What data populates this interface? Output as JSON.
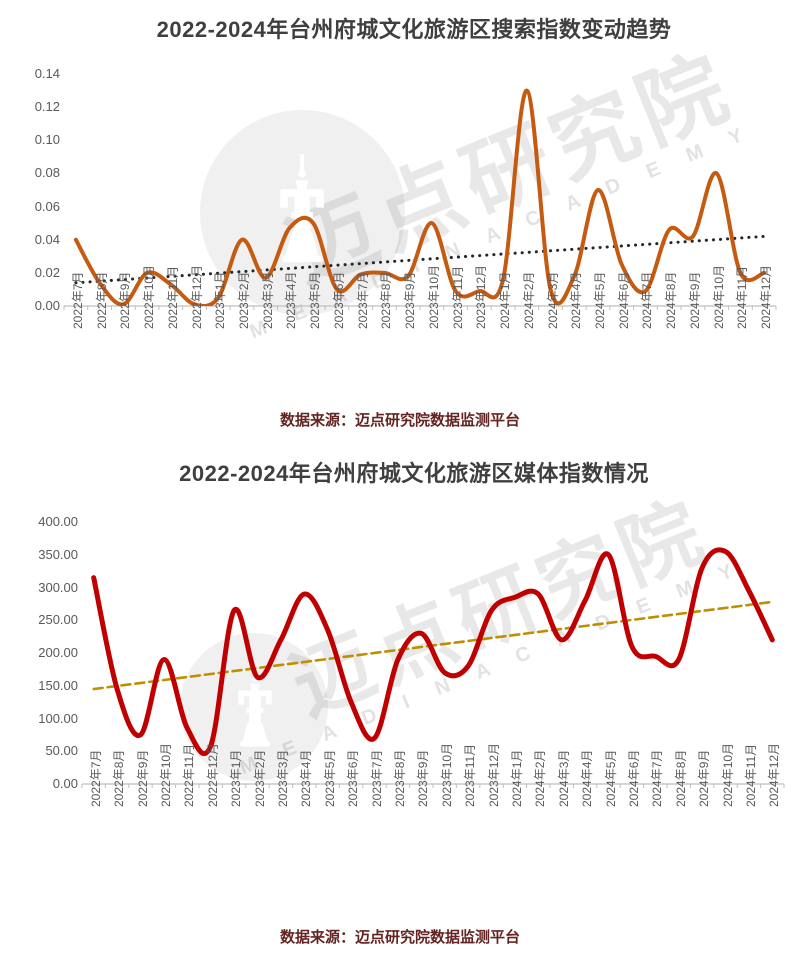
{
  "watermark": {
    "cn": "迈点研究院",
    "en": "M E A D I N   A C A D E M Y"
  },
  "chart_data": [
    {
      "type": "line",
      "title": "2022-2024年台州府城文化旅游区搜索指数变动趋势",
      "caption": "数据来源：迈点研究院数据监测平台",
      "categories": [
        "2022年7月",
        "2022年8月",
        "2022年9月",
        "2022年10月",
        "2022年11月",
        "2022年12月",
        "2023年1月",
        "2023年2月",
        "2023年3月",
        "2023年4月",
        "2023年5月",
        "2023年6月",
        "2023年7月",
        "2023年8月",
        "2023年9月",
        "2023年10月",
        "2023年11月",
        "2023年12月",
        "2024年1月",
        "2024年2月",
        "2024年3月",
        "2024年4月",
        "2024年5月",
        "2024年6月",
        "2024年7月",
        "2024年8月",
        "2024年9月",
        "2024年10月",
        "2024年11月",
        "2024年12月"
      ],
      "series": [
        {
          "values": [
            0.04,
            0.014,
            0.001,
            0.02,
            0.013,
            0.001,
            0.005,
            0.04,
            0.017,
            0.047,
            0.05,
            0.01,
            0.019,
            0.02,
            0.018,
            0.05,
            0.009,
            0.009,
            0.016,
            0.13,
            0.01,
            0.018,
            0.07,
            0.025,
            0.009,
            0.046,
            0.042,
            0.08,
            0.02,
            0.02
          ]
        }
      ],
      "trend": {
        "start": 0.014,
        "end": 0.042
      },
      "ylim": [
        0,
        0.14
      ],
      "ytick_labels": [
        "0.00",
        "0.02",
        "0.04",
        "0.06",
        "0.08",
        "0.10",
        "0.12",
        "0.14"
      ],
      "line_color": "#C55A11",
      "trend_color": "#262626",
      "trend_style": "dotted",
      "grid": false,
      "legend": false,
      "x_label_rotation": 90
    },
    {
      "type": "line",
      "title": "2022-2024年台州府城文化旅游区媒体指数情况",
      "caption": "数据来源：迈点研究院数据监测平台",
      "categories": [
        "2022年7月",
        "2022年8月",
        "2022年9月",
        "2022年10月",
        "2022年11月",
        "2022年12月",
        "2023年1月",
        "2023年2月",
        "2023年3月",
        "2023年4月",
        "2023年5月",
        "2023年6月",
        "2023年7月",
        "2023年8月",
        "2023年9月",
        "2023年10月",
        "2023年11月",
        "2023年12月",
        "2024年1月",
        "2024年2月",
        "2024年3月",
        "2024年4月",
        "2024年5月",
        "2024年6月",
        "2024年7月",
        "2024年8月",
        "2024年9月",
        "2024年10月",
        "2024年11月",
        "2024年12月"
      ],
      "series": [
        {
          "values": [
            315,
            145,
            75,
            190,
            85,
            58,
            265,
            163,
            220,
            290,
            235,
            125,
            70,
            190,
            230,
            170,
            180,
            265,
            285,
            290,
            220,
            280,
            350,
            210,
            195,
            190,
            330,
            355,
            295,
            220
          ]
        }
      ],
      "trend": {
        "start": 145,
        "end": 278
      },
      "ylim": [
        0,
        400
      ],
      "ytick_labels": [
        "0.00",
        "50.00",
        "100.00",
        "150.00",
        "200.00",
        "250.00",
        "300.00",
        "350.00",
        "400.00"
      ],
      "line_color": "#C00000",
      "trend_color": "#BF8F00",
      "trend_style": "dashed",
      "grid": false,
      "legend": false,
      "x_label_rotation": 90
    }
  ]
}
